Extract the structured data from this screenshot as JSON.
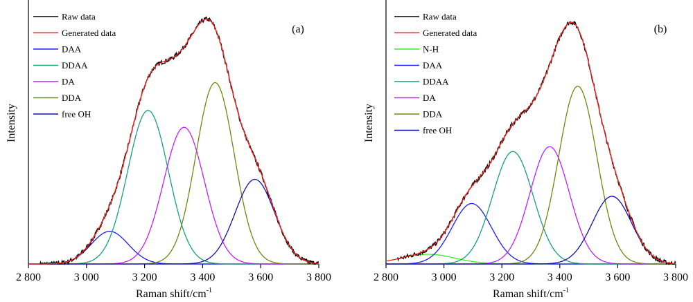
{
  "chart_data": [
    {
      "panel": "a",
      "type": "line",
      "panel_label": "(a)",
      "xlabel": "Raman shift/cm",
      "xlabel_superscript": "-1",
      "ylabel": "Intensity",
      "xlim": [
        2800,
        3800
      ],
      "ylim": [
        0,
        1.0
      ],
      "xticks": [
        2800,
        3000,
        3200,
        3400,
        3600,
        3800
      ],
      "xtick_labels": [
        "2 800",
        "3 000",
        "3 200",
        "3 400",
        "3 600",
        "3 800"
      ],
      "legend_position": "top-left",
      "grid": false,
      "series": [
        {
          "name": "Raw data",
          "color": "#000000",
          "kind": "sum_noisy"
        },
        {
          "name": "Generated data",
          "color": "#ff2020",
          "kind": "sum"
        },
        {
          "name": "DAA",
          "color": "#1a1aff",
          "kind": "gaussian",
          "center": 3080,
          "amplitude": 0.135,
          "fwhm": 150
        },
        {
          "name": "DDAA",
          "color": "#17a07a",
          "kind": "gaussian",
          "center": 3212,
          "amplitude": 0.635,
          "fwhm": 165
        },
        {
          "name": "DA",
          "color": "#c020ff",
          "kind": "gaussian",
          "center": 3336,
          "amplitude": 0.565,
          "fwhm": 165
        },
        {
          "name": "DDA",
          "color": "#6b8a10",
          "kind": "gaussian",
          "center": 3443,
          "amplitude": 0.75,
          "fwhm": 155
        },
        {
          "name": "free OH",
          "color": "#1010b0",
          "kind": "gaussian",
          "center": 3580,
          "amplitude": 0.35,
          "fwhm": 160
        }
      ]
    },
    {
      "panel": "b",
      "type": "line",
      "panel_label": "(b)",
      "xlabel": "Raman shift/cm",
      "xlabel_superscript": "-1",
      "ylabel": "Intensity",
      "xlim": [
        2800,
        3800
      ],
      "ylim": [
        0,
        1.0
      ],
      "xticks": [
        2800,
        3000,
        3200,
        3400,
        3600,
        3800
      ],
      "xtick_labels": [
        "2 800",
        "3 000",
        "3 200",
        "3 400",
        "3 600",
        "3 800"
      ],
      "legend_position": "top-left",
      "grid": false,
      "series": [
        {
          "name": "Raw data",
          "color": "#000000",
          "kind": "sum_noisy"
        },
        {
          "name": "Generated data",
          "color": "#ff2020",
          "kind": "sum"
        },
        {
          "name": "N-H",
          "color": "#33ee22",
          "kind": "gaussian",
          "center": 2945,
          "amplitude": 0.04,
          "fwhm": 220
        },
        {
          "name": "DAA",
          "color": "#1a1aff",
          "kind": "gaussian",
          "center": 3096,
          "amplitude": 0.25,
          "fwhm": 160
        },
        {
          "name": "DDAA",
          "color": "#17a07a",
          "kind": "gaussian",
          "center": 3238,
          "amplitude": 0.465,
          "fwhm": 165
        },
        {
          "name": "DA",
          "color": "#c020ff",
          "kind": "gaussian",
          "center": 3365,
          "amplitude": 0.485,
          "fwhm": 160
        },
        {
          "name": "DDA",
          "color": "#6b8a10",
          "kind": "gaussian",
          "center": 3462,
          "amplitude": 0.735,
          "fwhm": 155
        },
        {
          "name": "free OH",
          "color": "#1010b0",
          "kind": "gaussian",
          "center": 3580,
          "amplitude": 0.28,
          "fwhm": 160
        }
      ]
    }
  ]
}
